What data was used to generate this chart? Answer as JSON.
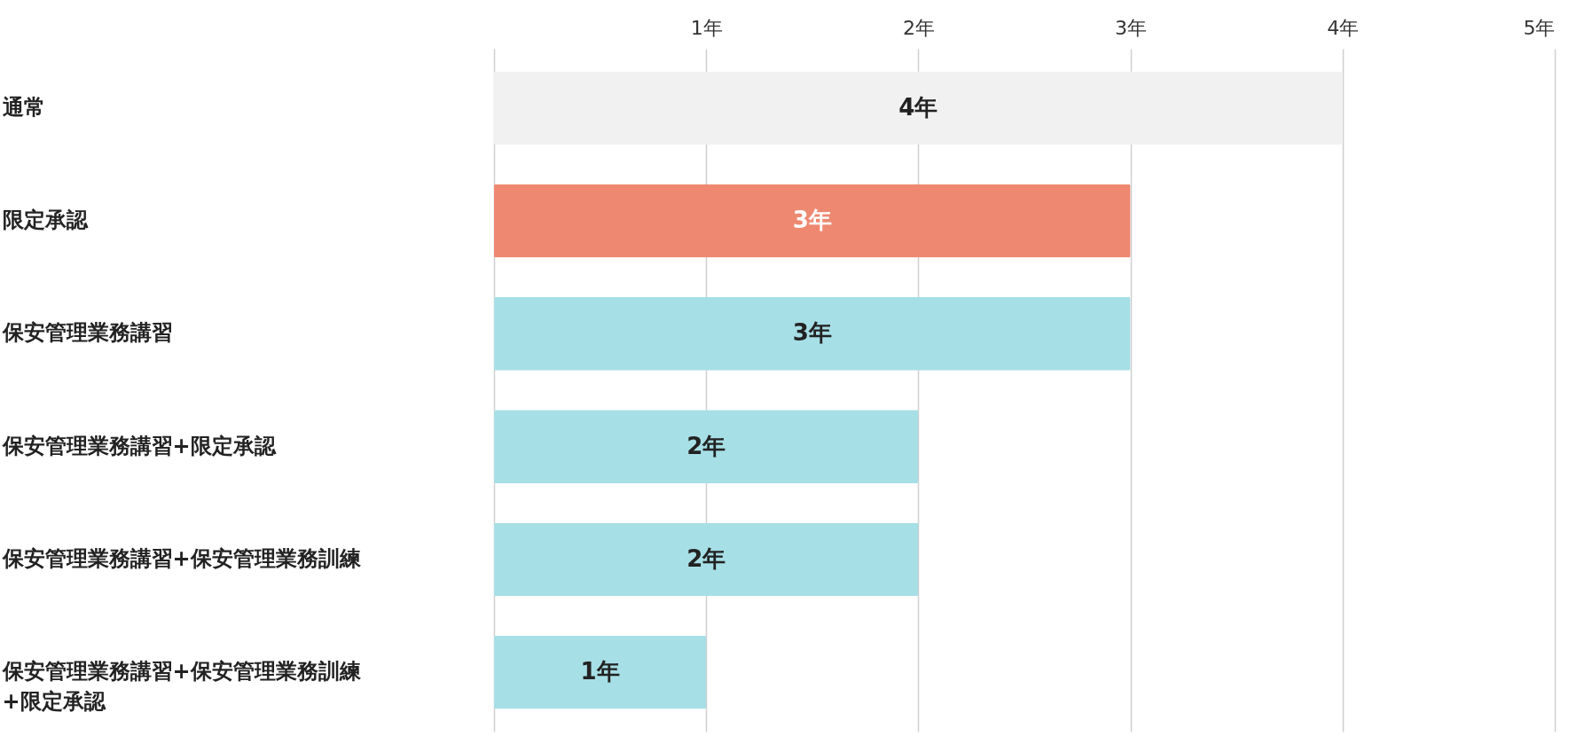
{
  "chart_data": {
    "type": "bar",
    "orientation": "horizontal",
    "categories": [
      "通常",
      "限定承認",
      "保安管理業務講習",
      "保安管理業務講習+限定承認",
      "保安管理業務講習+保安管理業務訓練",
      "保安管理業務講習+保安管理業務訓練+限定承認"
    ],
    "values": [
      4,
      3,
      3,
      2,
      2,
      1
    ],
    "colors": [
      "#f1f1f1",
      "#ee8870",
      "#a7dfe6",
      "#a7dfe6",
      "#a7dfe6",
      "#a7dfe6"
    ],
    "value_labels": [
      "4年",
      "3年",
      "3年",
      "2年",
      "2年",
      "1年"
    ],
    "xlim": [
      0,
      5
    ],
    "xticks": [
      {
        "value": 0,
        "label": null
      },
      {
        "value": 1,
        "label": "1年"
      },
      {
        "value": 2,
        "label": "2年"
      },
      {
        "value": 3,
        "label": "3年"
      },
      {
        "value": 4,
        "label": "4年"
      },
      {
        "value": 5,
        "label": "5年"
      }
    ],
    "grid": "x"
  }
}
